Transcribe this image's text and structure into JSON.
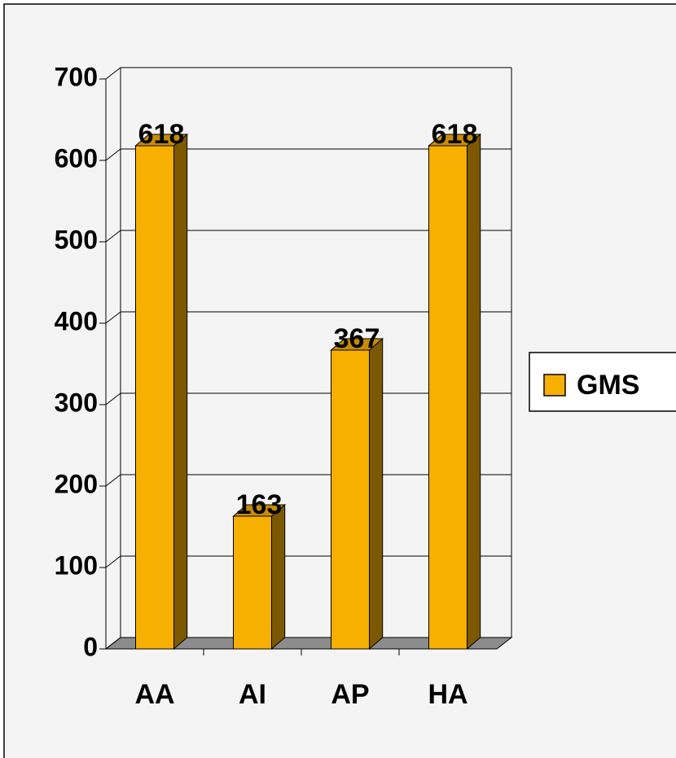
{
  "chart_data": {
    "type": "bar",
    "categories": [
      "AA",
      "AI",
      "AP",
      "HA"
    ],
    "series": [
      {
        "name": "GMS",
        "color": "#f7b000",
        "values": [
          618,
          163,
          367,
          618
        ]
      }
    ],
    "ylim": [
      0,
      700
    ],
    "yticks": [
      0,
      100,
      200,
      300,
      400,
      500,
      600,
      700
    ],
    "grid": true,
    "legend": "right",
    "data_labels": true,
    "three_d": true
  }
}
